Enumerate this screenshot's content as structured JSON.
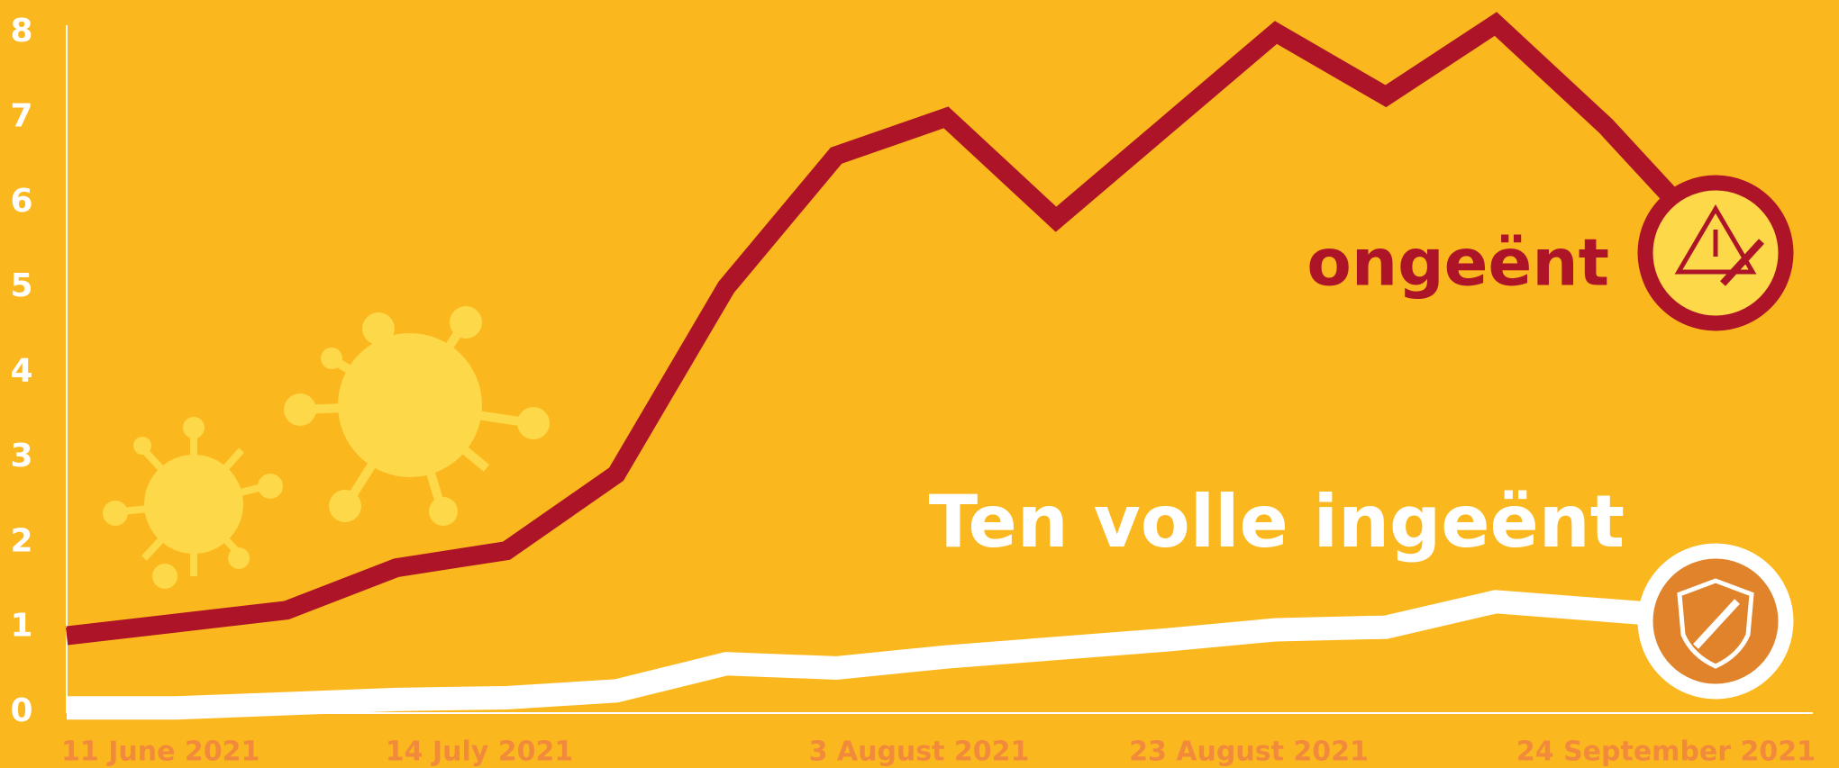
{
  "chart_data": {
    "type": "line",
    "categories": [
      "11 June 2021",
      null,
      null,
      null,
      "14 July 2021",
      null,
      null,
      null,
      "3 August 2021",
      null,
      null,
      "23 August 2021",
      null,
      null,
      null,
      "24 September 2021"
    ],
    "series": [
      {
        "name": "ongeënt",
        "color": "#AE1428",
        "values": [
          0.9,
          1.05,
          1.2,
          1.7,
          1.9,
          2.8,
          5.0,
          6.55,
          7.0,
          5.8,
          6.9,
          8.0,
          7.25,
          8.1,
          6.9,
          5.5
        ]
      },
      {
        "name": "Ten volle ingeënt",
        "color": "#FFFFFF",
        "values": [
          0.05,
          0.05,
          0.1,
          0.15,
          0.17,
          0.25,
          0.57,
          0.52,
          0.65,
          0.75,
          0.85,
          0.97,
          1.0,
          1.3,
          1.2,
          1.1
        ]
      }
    ],
    "ylim": [
      0,
      8
    ],
    "yticks": [
      0,
      1,
      2,
      3,
      4,
      5,
      6,
      7,
      8
    ],
    "grid": false
  }
}
